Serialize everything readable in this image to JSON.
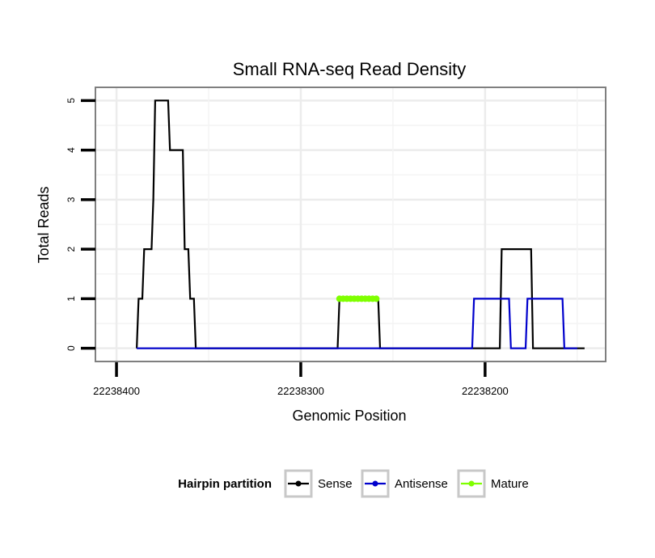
{
  "chart_data": {
    "type": "line",
    "title": "Small RNA-seq Read Density",
    "xlabel": "Genomic Position",
    "ylabel": "Total Reads",
    "x_reversed": true,
    "xlim": [
      22238411,
      22238135
    ],
    "ylim": [
      -0.25,
      5.25
    ],
    "x_ticks": [
      22238400,
      22238300,
      22238200
    ],
    "x_tick_labels": [
      "22238400",
      "22238300",
      "22238200"
    ],
    "y_ticks": [
      0,
      1,
      2,
      3,
      4,
      5
    ],
    "y_tick_labels": [
      "0",
      "1",
      "2",
      "3",
      "4",
      "5"
    ],
    "grid": true,
    "legend": {
      "title": "Hairpin partition",
      "position": "bottom",
      "entries": [
        "Sense",
        "Antisense",
        "Mature"
      ]
    },
    "series": [
      {
        "name": "Sense",
        "color": "#000000",
        "points": [
          [
            22238389,
            0
          ],
          [
            22238388,
            1
          ],
          [
            22238386,
            1
          ],
          [
            22238385,
            2
          ],
          [
            22238381,
            2
          ],
          [
            22238380,
            3
          ],
          [
            22238379,
            5
          ],
          [
            22238372,
            5
          ],
          [
            22238371,
            4
          ],
          [
            22238364,
            4
          ],
          [
            22238363,
            2
          ],
          [
            22238361,
            2
          ],
          [
            22238360,
            1
          ],
          [
            22238358,
            1
          ],
          [
            22238357,
            0
          ],
          [
            22238280,
            0
          ],
          [
            22238279,
            1
          ],
          [
            22238258,
            1
          ],
          [
            22238257,
            0
          ],
          [
            22238192,
            0
          ],
          [
            22238191,
            2
          ],
          [
            22238175,
            2
          ],
          [
            22238174,
            0
          ],
          [
            22238146,
            0
          ]
        ]
      },
      {
        "name": "Antisense",
        "color": "#0000cc",
        "points": [
          [
            22238389,
            0
          ],
          [
            22238207,
            0
          ],
          [
            22238206,
            1
          ],
          [
            22238187,
            1
          ],
          [
            22238186,
            0
          ],
          [
            22238178,
            0
          ],
          [
            22238177,
            1
          ],
          [
            22238158,
            1
          ],
          [
            22238157,
            0
          ],
          [
            22238150,
            0
          ]
        ]
      },
      {
        "name": "Mature",
        "color": "#7fff00",
        "points": [
          [
            22238279,
            1
          ],
          [
            22238277,
            1
          ],
          [
            22238275,
            1
          ],
          [
            22238273,
            1
          ],
          [
            22238271,
            1
          ],
          [
            22238269,
            1
          ],
          [
            22238267,
            1
          ],
          [
            22238265,
            1
          ],
          [
            22238263,
            1
          ],
          [
            22238261,
            1
          ],
          [
            22238259,
            1
          ]
        ]
      }
    ]
  }
}
